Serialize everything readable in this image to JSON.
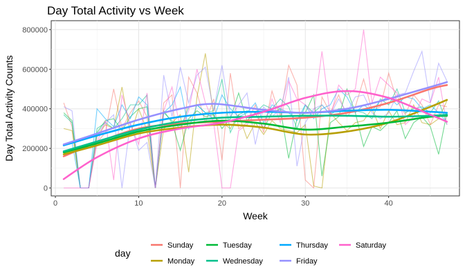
{
  "chart_data": {
    "type": "line",
    "title": "Day Total Activity vs Week",
    "xlabel": "Week",
    "ylabel": "Day Total Activity Counts",
    "xlim": [
      -0.5,
      48.5
    ],
    "ylim": [
      -40000,
      845000
    ],
    "xticks": [
      0,
      10,
      20,
      30,
      40
    ],
    "yticks": [
      0,
      200000,
      400000,
      600000,
      800000
    ],
    "ytick_labels": [
      "0",
      "200000",
      "400000",
      "600000",
      "800000"
    ],
    "grid": true,
    "legend": {
      "title": "day",
      "position": "bottom"
    },
    "raw_x": [
      1,
      2,
      3,
      4,
      5,
      6,
      7,
      8,
      9,
      10,
      11,
      12,
      13,
      14,
      15,
      16,
      17,
      18,
      19,
      20,
      21,
      22,
      23,
      24,
      25,
      26,
      27,
      28,
      29,
      30,
      31,
      32,
      33,
      34,
      35,
      36,
      37,
      38,
      39,
      40,
      41,
      42,
      43,
      44,
      45,
      46,
      47
    ],
    "series": [
      {
        "name": "Sunday",
        "color": "#F8766D",
        "raw": [
          430000,
          310000,
          0,
          0,
          230000,
          280000,
          500000,
          300000,
          380000,
          440000,
          360000,
          0,
          430000,
          470000,
          0,
          560000,
          480000,
          330000,
          450000,
          140000,
          580000,
          300000,
          330000,
          420000,
          280000,
          490000,
          360000,
          620000,
          520000,
          40000,
          0,
          460000,
          380000,
          470000,
          360000,
          410000,
          550000,
          390000,
          410000,
          580000,
          440000,
          370000,
          470000,
          420000,
          320000,
          420000,
          410000
        ],
        "trend": [
          [
            1,
            160000
          ],
          [
            5,
            230000
          ],
          [
            10,
            300000
          ],
          [
            15,
            325000
          ],
          [
            20,
            335000
          ],
          [
            25,
            345000
          ],
          [
            30,
            355000
          ],
          [
            35,
            380000
          ],
          [
            40,
            430000
          ],
          [
            45,
            500000
          ],
          [
            47,
            520000
          ]
        ]
      },
      {
        "name": "Monday",
        "color": "#B79F00",
        "raw": [
          300000,
          290000,
          0,
          0,
          260000,
          320000,
          300000,
          510000,
          270000,
          400000,
          290000,
          0,
          300000,
          330000,
          370000,
          80000,
          460000,
          680000,
          360000,
          330000,
          300000,
          370000,
          250000,
          330000,
          270000,
          340000,
          300000,
          290000,
          280000,
          320000,
          10000,
          0,
          380000,
          330000,
          290000,
          330000,
          340000,
          400000,
          300000,
          390000,
          320000,
          330000,
          420000,
          330000,
          320000,
          350000,
          440000
        ],
        "trend": [
          [
            1,
            170000
          ],
          [
            5,
            215000
          ],
          [
            10,
            275000
          ],
          [
            15,
            305000
          ],
          [
            20,
            320000
          ],
          [
            25,
            305000
          ],
          [
            30,
            270000
          ],
          [
            35,
            285000
          ],
          [
            40,
            330000
          ],
          [
            45,
            410000
          ],
          [
            47,
            445000
          ]
        ]
      },
      {
        "name": "Tuesday",
        "color": "#00BA38",
        "raw": [
          380000,
          340000,
          0,
          0,
          280000,
          340000,
          350000,
          290000,
          360000,
          400000,
          410000,
          0,
          390000,
          330000,
          190000,
          350000,
          390000,
          360000,
          370000,
          300000,
          350000,
          480000,
          340000,
          380000,
          300000,
          380000,
          400000,
          150000,
          350000,
          380000,
          470000,
          60000,
          330000,
          360000,
          500000,
          380000,
          210000,
          310000,
          290000,
          330000,
          390000,
          250000,
          330000,
          360000,
          310000,
          170000,
          380000
        ],
        "trend": [
          [
            1,
            180000
          ],
          [
            5,
            225000
          ],
          [
            10,
            285000
          ],
          [
            15,
            320000
          ],
          [
            20,
            340000
          ],
          [
            25,
            325000
          ],
          [
            30,
            295000
          ],
          [
            35,
            310000
          ],
          [
            40,
            330000
          ],
          [
            45,
            360000
          ],
          [
            47,
            365000
          ]
        ]
      },
      {
        "name": "Wednesday",
        "color": "#00C08B",
        "raw": [
          370000,
          330000,
          0,
          0,
          300000,
          330000,
          300000,
          350000,
          420000,
          420000,
          470000,
          0,
          380000,
          340000,
          300000,
          410000,
          420000,
          380000,
          390000,
          550000,
          280000,
          370000,
          390000,
          380000,
          420000,
          400000,
          450000,
          410000,
          300000,
          420000,
          380000,
          420000,
          370000,
          400000,
          400000,
          390000,
          380000,
          350000,
          450000,
          420000,
          500000,
          380000,
          400000,
          410000,
          380000,
          440000,
          320000
        ],
        "trend": [
          [
            1,
            185000
          ],
          [
            5,
            235000
          ],
          [
            10,
            295000
          ],
          [
            15,
            335000
          ],
          [
            20,
            355000
          ],
          [
            25,
            360000
          ],
          [
            30,
            365000
          ],
          [
            35,
            365000
          ],
          [
            40,
            360000
          ],
          [
            45,
            365000
          ],
          [
            47,
            370000
          ]
        ]
      },
      {
        "name": "Thursday",
        "color": "#00A9FF",
        "raw": [
          220000,
          230000,
          0,
          0,
          400000,
          350000,
          310000,
          420000,
          350000,
          460000,
          420000,
          0,
          380000,
          420000,
          510000,
          300000,
          420000,
          380000,
          350000,
          470000,
          400000,
          360000,
          380000,
          430000,
          330000,
          420000,
          400000,
          380000,
          340000,
          420000,
          350000,
          400000,
          420000,
          500000,
          460000,
          380000,
          420000,
          390000,
          440000,
          460000,
          420000,
          460000,
          450000,
          400000,
          420000,
          380000,
          330000
        ],
        "trend": [
          [
            1,
            215000
          ],
          [
            5,
            265000
          ],
          [
            10,
            320000
          ],
          [
            15,
            360000
          ],
          [
            20,
            380000
          ],
          [
            25,
            385000
          ],
          [
            30,
            380000
          ],
          [
            35,
            390000
          ],
          [
            40,
            395000
          ],
          [
            45,
            385000
          ],
          [
            47,
            380000
          ]
        ]
      },
      {
        "name": "Friday",
        "color": "#9590FF",
        "raw": [
          410000,
          390000,
          0,
          0,
          270000,
          330000,
          370000,
          0,
          330000,
          190000,
          230000,
          0,
          570000,
          360000,
          610000,
          430000,
          570000,
          610000,
          390000,
          620000,
          360000,
          420000,
          480000,
          220000,
          410000,
          360000,
          400000,
          560000,
          110000,
          330000,
          400000,
          420000,
          370000,
          450000,
          380000,
          460000,
          470000,
          380000,
          350000,
          380000,
          470000,
          480000,
          590000,
          690000,
          430000,
          630000,
          540000
        ],
        "trend": [
          [
            1,
            220000
          ],
          [
            5,
            275000
          ],
          [
            10,
            345000
          ],
          [
            15,
            400000
          ],
          [
            19,
            425000
          ],
          [
            25,
            395000
          ],
          [
            30,
            380000
          ],
          [
            35,
            400000
          ],
          [
            40,
            450000
          ],
          [
            45,
            510000
          ],
          [
            47,
            535000
          ]
        ]
      },
      {
        "name": "Saturday",
        "color": "#FF61CC",
        "raw": [
          0,
          0,
          0,
          0,
          230000,
          340000,
          40000,
          470000,
          320000,
          220000,
          480000,
          0,
          390000,
          510000,
          300000,
          390000,
          600000,
          430000,
          330000,
          0,
          0,
          290000,
          320000,
          380000,
          300000,
          450000,
          330000,
          540000,
          450000,
          420000,
          370000,
          690000,
          360000,
          520000,
          470000,
          500000,
          800000,
          430000,
          560000,
          520000,
          480000,
          320000,
          360000,
          450000,
          430000,
          560000,
          320000
        ],
        "trend": [
          [
            1,
            45000
          ],
          [
            5,
            155000
          ],
          [
            10,
            250000
          ],
          [
            15,
            300000
          ],
          [
            20,
            330000
          ],
          [
            25,
            385000
          ],
          [
            30,
            455000
          ],
          [
            35,
            490000
          ],
          [
            40,
            455000
          ],
          [
            45,
            370000
          ],
          [
            47,
            335000
          ]
        ]
      }
    ]
  }
}
